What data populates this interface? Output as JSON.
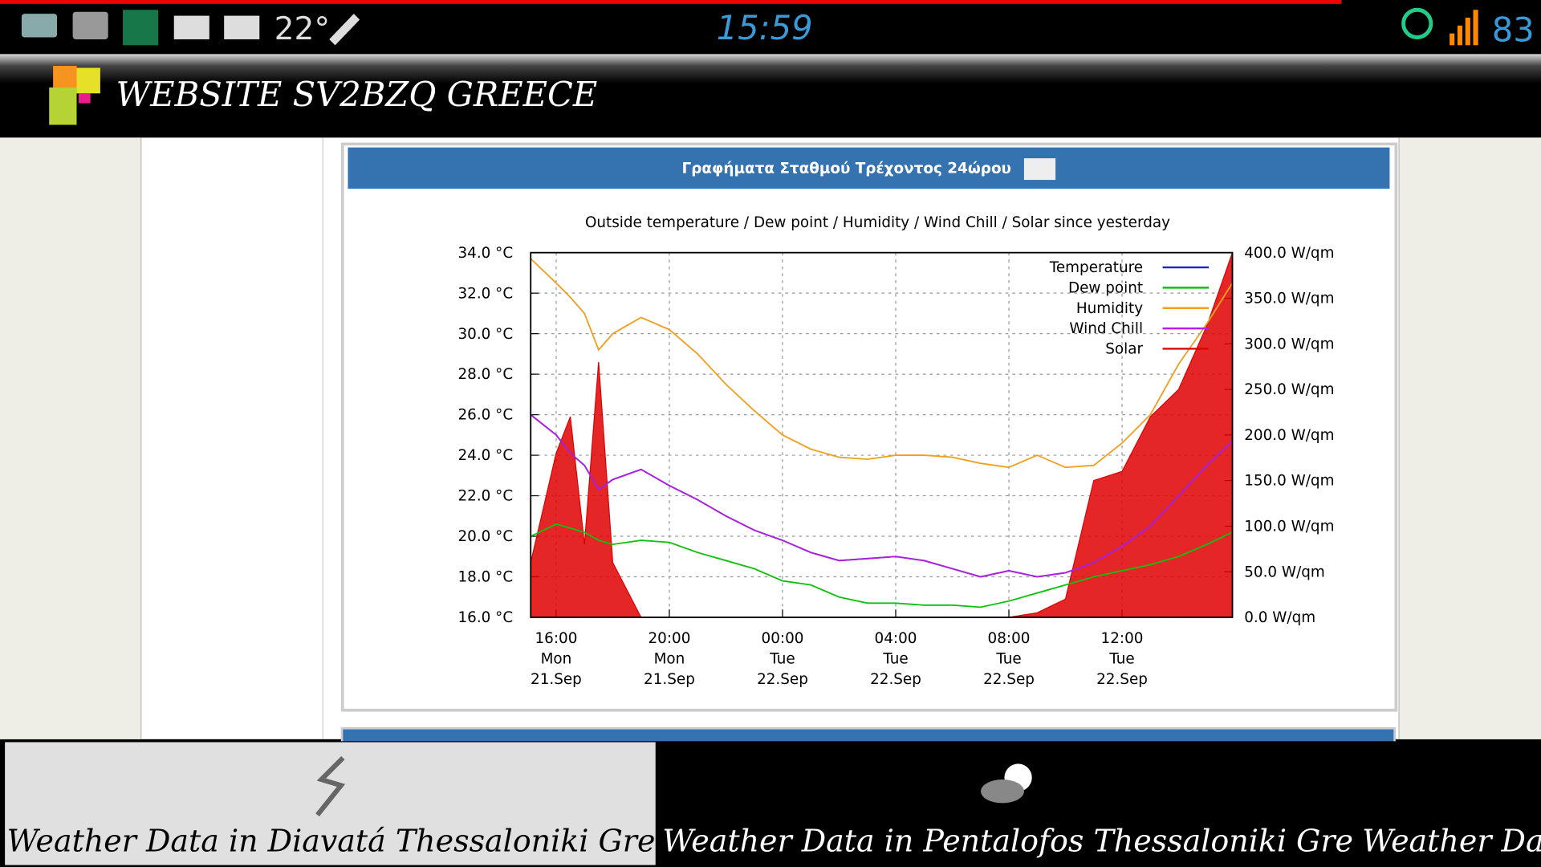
{
  "status_bar": {
    "temperature": "22°",
    "time": "15:59",
    "battery": "83"
  },
  "app_bar": {
    "title": "WEBSITE SV2BZQ GREECE"
  },
  "panel": {
    "title": "Γραφήματα Σταθμού Τρέχοντος 24ώρου"
  },
  "chart_data": {
    "type": "line",
    "title": "Outside temperature / Dew point / Humidity / Wind Chill / Solar since yesterday",
    "x": [
      15.1,
      16,
      16.5,
      17,
      17.5,
      18,
      19,
      20,
      21,
      22,
      23,
      24,
      25,
      26,
      27,
      28,
      29,
      30,
      31,
      32,
      33,
      34,
      35,
      36,
      37,
      38,
      39,
      39.9
    ],
    "xlim": [
      15.1,
      39.9
    ],
    "xticks": [
      {
        "value": 16,
        "label": "16:00\nMon\n21.Sep"
      },
      {
        "value": 20,
        "label": "20:00\nMon\n21.Sep"
      },
      {
        "value": 24,
        "label": "00:00\nTue\n22.Sep"
      },
      {
        "value": 28,
        "label": "04:00\nTue\n22.Sep"
      },
      {
        "value": 32,
        "label": "08:00\nTue\n22.Sep"
      },
      {
        "value": 36,
        "label": "12:00\nTue\n22.Sep"
      }
    ],
    "ylim": [
      16,
      34
    ],
    "yticks": [
      {
        "value": 16,
        "label": "16.0 °C"
      },
      {
        "value": 18,
        "label": "18.0 °C"
      },
      {
        "value": 20,
        "label": "20.0 °C"
      },
      {
        "value": 22,
        "label": "22.0 °C"
      },
      {
        "value": 24,
        "label": "24.0 °C"
      },
      {
        "value": 26,
        "label": "26.0 °C"
      },
      {
        "value": 28,
        "label": "28.0 °C"
      },
      {
        "value": 30,
        "label": "30.0 °C"
      },
      {
        "value": 32,
        "label": "32.0 °C"
      },
      {
        "value": 34,
        "label": "34.0 °C"
      }
    ],
    "y2lim": [
      0,
      400
    ],
    "y2ticks": [
      {
        "value": 0,
        "label": "0.0 W/qm"
      },
      {
        "value": 50,
        "label": "50.0 W/qm"
      },
      {
        "value": 100,
        "label": "100.0 W/qm"
      },
      {
        "value": 150,
        "label": "150.0 W/qm"
      },
      {
        "value": 200,
        "label": "200.0 W/qm"
      },
      {
        "value": 250,
        "label": "250.0 W/qm"
      },
      {
        "value": 300,
        "label": "300.0 W/qm"
      },
      {
        "value": 350,
        "label": "350.0 W/qm"
      },
      {
        "value": 400,
        "label": "400.0 W/qm"
      }
    ],
    "grid": true,
    "legend": "upper right",
    "series": [
      {
        "name": "Temperature",
        "color": "#2020d0",
        "values": [
          26.0,
          25.0,
          24.1,
          23.5,
          22.3,
          22.8,
          23.3,
          22.5,
          21.8,
          21.0,
          20.3,
          19.8,
          19.2,
          18.8,
          18.9,
          19.0,
          18.8,
          18.4,
          18.0,
          18.3,
          18.0,
          18.2,
          18.7,
          19.5,
          20.5,
          22.0,
          23.5,
          24.7
        ]
      },
      {
        "name": "Dew point",
        "color": "#10c010",
        "values": [
          20.0,
          20.6,
          20.4,
          20.2,
          19.8,
          19.6,
          19.8,
          19.7,
          19.2,
          18.8,
          18.4,
          17.8,
          17.6,
          17.0,
          16.7,
          16.7,
          16.6,
          16.6,
          16.5,
          16.8,
          17.2,
          17.6,
          18.0,
          18.3,
          18.6,
          19.0,
          19.6,
          20.2
        ]
      },
      {
        "name": "Humidity",
        "color": "#f0a020",
        "values": [
          33.7,
          32.5,
          31.8,
          31.0,
          29.2,
          30.0,
          30.8,
          30.2,
          29.0,
          27.5,
          26.2,
          25.0,
          24.3,
          23.9,
          23.8,
          24.0,
          24.0,
          23.9,
          23.6,
          23.4,
          24.0,
          23.4,
          23.5,
          24.6,
          26.0,
          28.5,
          30.5,
          32.5
        ]
      },
      {
        "name": "Wind Chill",
        "color": "#b020e0",
        "values": [
          26.0,
          25.0,
          24.1,
          23.5,
          22.3,
          22.8,
          23.3,
          22.5,
          21.8,
          21.0,
          20.3,
          19.8,
          19.2,
          18.8,
          18.9,
          19.0,
          18.8,
          18.4,
          18.0,
          18.3,
          18.0,
          18.2,
          18.7,
          19.5,
          20.5,
          22.0,
          23.5,
          24.7
        ]
      },
      {
        "name": "Solar",
        "color": "#e00000",
        "axis": "y2",
        "style": "area",
        "values": [
          60,
          180,
          220,
          80,
          280,
          60,
          0,
          0,
          0,
          0,
          0,
          0,
          0,
          0,
          0,
          0,
          0,
          0,
          0,
          0,
          5,
          20,
          150,
          160,
          220,
          250,
          320,
          400
        ]
      }
    ]
  },
  "tabs": [
    "Weather Data in Diavatá Thessaloniki Greece",
    "Weather Data in Pentalofos Thessaloniki Greece",
    "Weather Dat"
  ]
}
